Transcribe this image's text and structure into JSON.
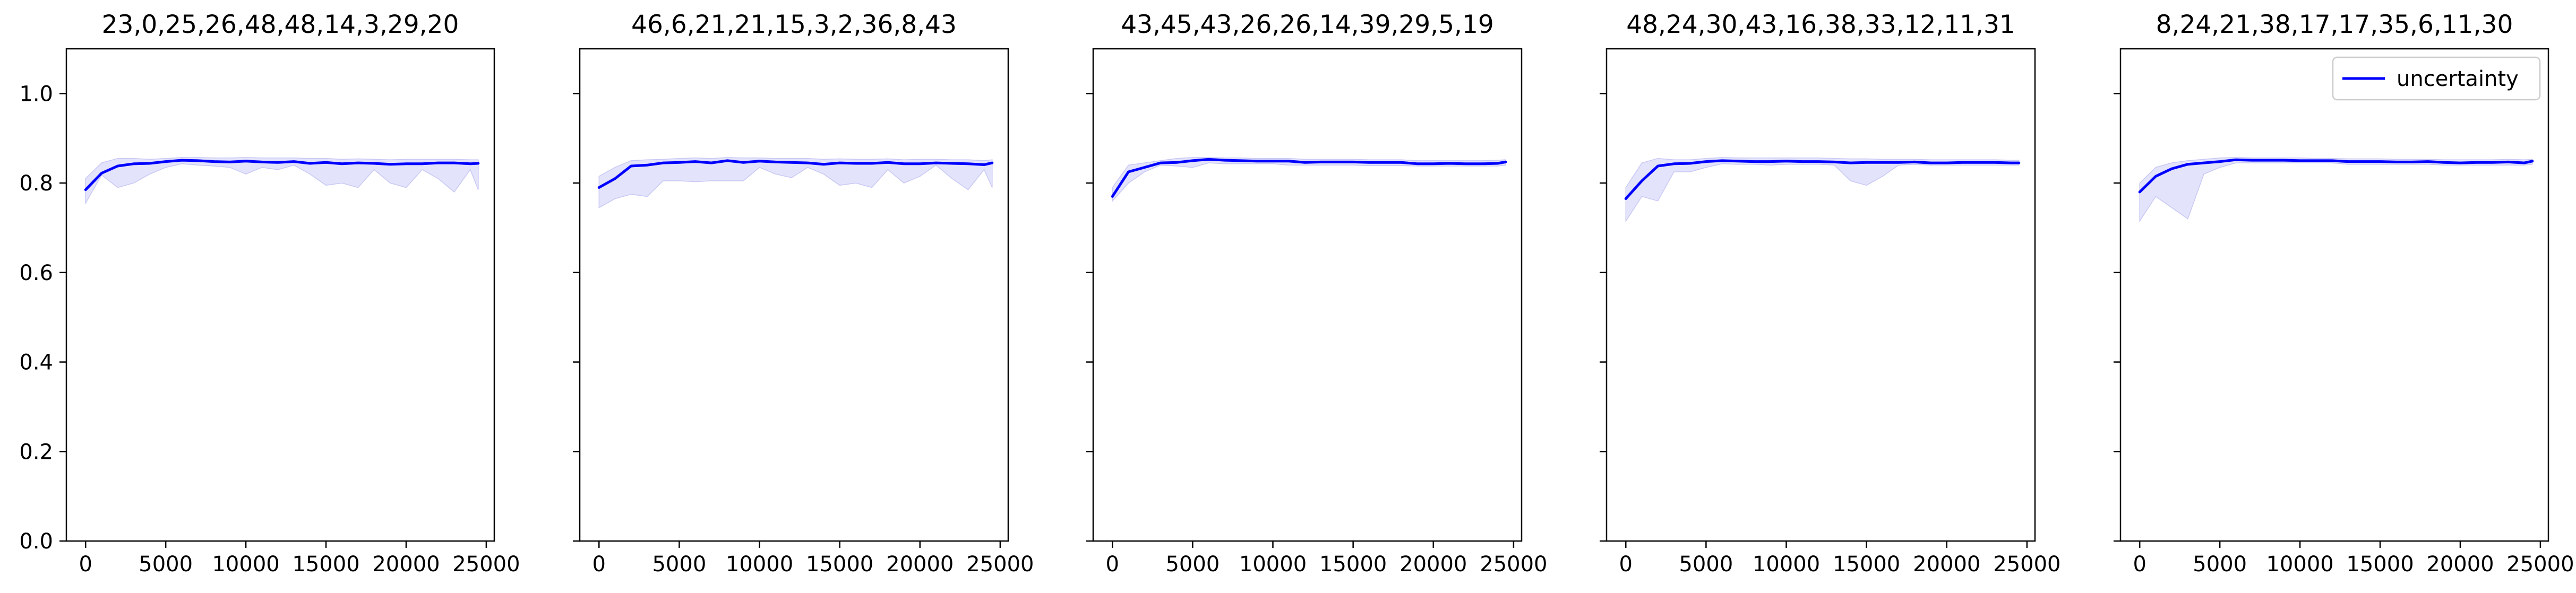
{
  "legend_label": "uncertainty",
  "colors": {
    "line": "#0000ff",
    "band": "#e3e3fb",
    "band_edge": "#c8c8f4",
    "axis": "#000000",
    "background": "#ffffff"
  },
  "chart_data": [
    {
      "type": "line",
      "title": "23,0,25,26,48,48,14,3,29,20",
      "xlabel": "",
      "ylabel": "",
      "xlim": [
        -1200,
        25500
      ],
      "ylim": [
        0.0,
        1.1
      ],
      "xticks": [
        0,
        5000,
        10000,
        15000,
        20000,
        25000
      ],
      "yticks": [
        0.0,
        0.2,
        0.4,
        0.6,
        0.8,
        1.0
      ],
      "ytick_labels": [
        "0.0",
        "0.2",
        "0.4",
        "0.6",
        "0.8",
        "1.0"
      ],
      "grid": false,
      "legend": null,
      "series": [
        {
          "x": [
            0,
            1000,
            2000,
            3000,
            4000,
            5000,
            6000,
            7000,
            8000,
            9000,
            10000,
            11000,
            12000,
            13000,
            14000,
            15000,
            16000,
            17000,
            18000,
            19000,
            20000,
            21000,
            22000,
            23000,
            24000,
            24500
          ],
          "mean": [
            0.785,
            0.822,
            0.838,
            0.843,
            0.844,
            0.848,
            0.851,
            0.85,
            0.848,
            0.847,
            0.849,
            0.847,
            0.846,
            0.848,
            0.844,
            0.846,
            0.843,
            0.845,
            0.844,
            0.842,
            0.843,
            0.843,
            0.845,
            0.845,
            0.843,
            0.844
          ],
          "lower": [
            0.755,
            0.818,
            0.79,
            0.8,
            0.82,
            0.835,
            0.843,
            0.84,
            0.838,
            0.835,
            0.82,
            0.835,
            0.83,
            0.84,
            0.82,
            0.795,
            0.8,
            0.79,
            0.83,
            0.8,
            0.79,
            0.83,
            0.81,
            0.78,
            0.83,
            0.785
          ],
          "upper": [
            0.81,
            0.845,
            0.855,
            0.855,
            0.853,
            0.855,
            0.857,
            0.857,
            0.856,
            0.856,
            0.857,
            0.856,
            0.856,
            0.856,
            0.855,
            0.855,
            0.853,
            0.854,
            0.853,
            0.852,
            0.853,
            0.853,
            0.853,
            0.853,
            0.852,
            0.852
          ]
        }
      ]
    },
    {
      "type": "line",
      "title": "46,6,21,21,15,3,2,36,8,43",
      "xlabel": "",
      "ylabel": "",
      "xlim": [
        -1200,
        25500
      ],
      "ylim": [
        0.0,
        1.1
      ],
      "xticks": [
        0,
        5000,
        10000,
        15000,
        20000,
        25000
      ],
      "yticks": [
        0.0,
        0.2,
        0.4,
        0.6,
        0.8,
        1.0
      ],
      "ytick_labels": [],
      "grid": false,
      "legend": null,
      "series": [
        {
          "x": [
            0,
            1000,
            2000,
            3000,
            4000,
            5000,
            6000,
            7000,
            8000,
            9000,
            10000,
            11000,
            12000,
            13000,
            14000,
            15000,
            16000,
            17000,
            18000,
            19000,
            20000,
            21000,
            22000,
            23000,
            24000,
            24500
          ],
          "mean": [
            0.79,
            0.81,
            0.838,
            0.84,
            0.845,
            0.846,
            0.848,
            0.845,
            0.85,
            0.846,
            0.849,
            0.847,
            0.846,
            0.845,
            0.842,
            0.845,
            0.844,
            0.844,
            0.846,
            0.843,
            0.843,
            0.845,
            0.844,
            0.843,
            0.841,
            0.845
          ],
          "lower": [
            0.745,
            0.765,
            0.775,
            0.77,
            0.805,
            0.805,
            0.803,
            0.805,
            0.805,
            0.805,
            0.835,
            0.82,
            0.812,
            0.835,
            0.82,
            0.795,
            0.8,
            0.79,
            0.83,
            0.8,
            0.815,
            0.84,
            0.81,
            0.785,
            0.83,
            0.79
          ],
          "upper": [
            0.815,
            0.835,
            0.85,
            0.852,
            0.853,
            0.855,
            0.856,
            0.855,
            0.857,
            0.856,
            0.856,
            0.855,
            0.855,
            0.855,
            0.853,
            0.854,
            0.853,
            0.853,
            0.854,
            0.852,
            0.853,
            0.853,
            0.852,
            0.852,
            0.85,
            0.852
          ]
        }
      ]
    },
    {
      "type": "line",
      "title": "43,45,43,26,26,14,39,29,5,19",
      "xlabel": "",
      "ylabel": "",
      "xlim": [
        -1200,
        25500
      ],
      "ylim": [
        0.0,
        1.1
      ],
      "xticks": [
        0,
        5000,
        10000,
        15000,
        20000,
        25000
      ],
      "yticks": [
        0.0,
        0.2,
        0.4,
        0.6,
        0.8,
        1.0
      ],
      "ytick_labels": [],
      "grid": false,
      "legend": null,
      "series": [
        {
          "x": [
            0,
            1000,
            2000,
            3000,
            4000,
            5000,
            6000,
            7000,
            8000,
            9000,
            10000,
            11000,
            12000,
            13000,
            14000,
            15000,
            16000,
            17000,
            18000,
            19000,
            20000,
            21000,
            22000,
            23000,
            24000,
            24500
          ],
          "mean": [
            0.77,
            0.825,
            0.835,
            0.845,
            0.846,
            0.85,
            0.853,
            0.851,
            0.85,
            0.849,
            0.849,
            0.849,
            0.846,
            0.847,
            0.847,
            0.847,
            0.846,
            0.846,
            0.846,
            0.843,
            0.843,
            0.844,
            0.843,
            0.843,
            0.844,
            0.847
          ],
          "lower": [
            0.76,
            0.8,
            0.825,
            0.84,
            0.838,
            0.835,
            0.845,
            0.843,
            0.843,
            0.843,
            0.843,
            0.84,
            0.84,
            0.84,
            0.84,
            0.84,
            0.839,
            0.839,
            0.839,
            0.838,
            0.838,
            0.838,
            0.838,
            0.838,
            0.838,
            0.84
          ],
          "upper": [
            0.79,
            0.84,
            0.845,
            0.85,
            0.855,
            0.857,
            0.857,
            0.856,
            0.856,
            0.855,
            0.855,
            0.855,
            0.853,
            0.853,
            0.853,
            0.853,
            0.852,
            0.852,
            0.852,
            0.85,
            0.85,
            0.85,
            0.85,
            0.85,
            0.851,
            0.852
          ]
        }
      ]
    },
    {
      "type": "line",
      "title": "48,24,30,43,16,38,33,12,11,31",
      "xlabel": "",
      "ylabel": "",
      "xlim": [
        -1200,
        25500
      ],
      "ylim": [
        0.0,
        1.1
      ],
      "xticks": [
        0,
        5000,
        10000,
        15000,
        20000,
        25000
      ],
      "yticks": [
        0.0,
        0.2,
        0.4,
        0.6,
        0.8,
        1.0
      ],
      "ytick_labels": [],
      "grid": false,
      "legend": null,
      "series": [
        {
          "x": [
            0,
            1000,
            2000,
            3000,
            4000,
            5000,
            6000,
            7000,
            8000,
            9000,
            10000,
            11000,
            12000,
            13000,
            14000,
            15000,
            16000,
            17000,
            18000,
            19000,
            20000,
            21000,
            22000,
            23000,
            24000,
            24500
          ],
          "mean": [
            0.765,
            0.805,
            0.838,
            0.843,
            0.844,
            0.848,
            0.85,
            0.849,
            0.848,
            0.848,
            0.849,
            0.848,
            0.848,
            0.847,
            0.845,
            0.846,
            0.846,
            0.846,
            0.847,
            0.845,
            0.845,
            0.846,
            0.846,
            0.846,
            0.845,
            0.845
          ],
          "lower": [
            0.715,
            0.77,
            0.76,
            0.825,
            0.825,
            0.835,
            0.843,
            0.842,
            0.842,
            0.84,
            0.842,
            0.842,
            0.842,
            0.84,
            0.805,
            0.795,
            0.815,
            0.84,
            0.842,
            0.84,
            0.84,
            0.84,
            0.84,
            0.84,
            0.84,
            0.84
          ],
          "upper": [
            0.79,
            0.845,
            0.855,
            0.852,
            0.852,
            0.855,
            0.857,
            0.856,
            0.856,
            0.856,
            0.856,
            0.856,
            0.856,
            0.855,
            0.854,
            0.854,
            0.853,
            0.853,
            0.853,
            0.852,
            0.852,
            0.852,
            0.852,
            0.852,
            0.851,
            0.851
          ]
        }
      ]
    },
    {
      "type": "line",
      "title": "8,24,21,38,17,17,35,6,11,30",
      "xlabel": "",
      "ylabel": "",
      "xlim": [
        -1200,
        25500
      ],
      "ylim": [
        0.0,
        1.1
      ],
      "xticks": [
        0,
        5000,
        10000,
        15000,
        20000,
        25000
      ],
      "yticks": [
        0.0,
        0.2,
        0.4,
        0.6,
        0.8,
        1.0
      ],
      "ytick_labels": [],
      "grid": false,
      "legend": "upper right",
      "series": [
        {
          "name": "uncertainty",
          "x": [
            0,
            1000,
            2000,
            3000,
            4000,
            5000,
            6000,
            7000,
            8000,
            9000,
            10000,
            11000,
            12000,
            13000,
            14000,
            15000,
            16000,
            17000,
            18000,
            19000,
            20000,
            21000,
            22000,
            23000,
            24000,
            24500
          ],
          "mean": [
            0.78,
            0.815,
            0.832,
            0.842,
            0.845,
            0.848,
            0.852,
            0.851,
            0.851,
            0.851,
            0.85,
            0.85,
            0.85,
            0.848,
            0.848,
            0.848,
            0.847,
            0.847,
            0.848,
            0.846,
            0.845,
            0.846,
            0.846,
            0.847,
            0.845,
            0.849
          ],
          "lower": [
            0.715,
            0.77,
            0.745,
            0.72,
            0.82,
            0.835,
            0.845,
            0.845,
            0.845,
            0.845,
            0.845,
            0.845,
            0.845,
            0.842,
            0.842,
            0.842,
            0.842,
            0.842,
            0.842,
            0.84,
            0.84,
            0.84,
            0.84,
            0.84,
            0.84,
            0.842
          ],
          "upper": [
            0.8,
            0.835,
            0.845,
            0.85,
            0.853,
            0.856,
            0.857,
            0.856,
            0.856,
            0.856,
            0.856,
            0.855,
            0.855,
            0.854,
            0.854,
            0.854,
            0.853,
            0.853,
            0.853,
            0.852,
            0.852,
            0.852,
            0.852,
            0.853,
            0.852,
            0.853
          ]
        }
      ]
    }
  ]
}
